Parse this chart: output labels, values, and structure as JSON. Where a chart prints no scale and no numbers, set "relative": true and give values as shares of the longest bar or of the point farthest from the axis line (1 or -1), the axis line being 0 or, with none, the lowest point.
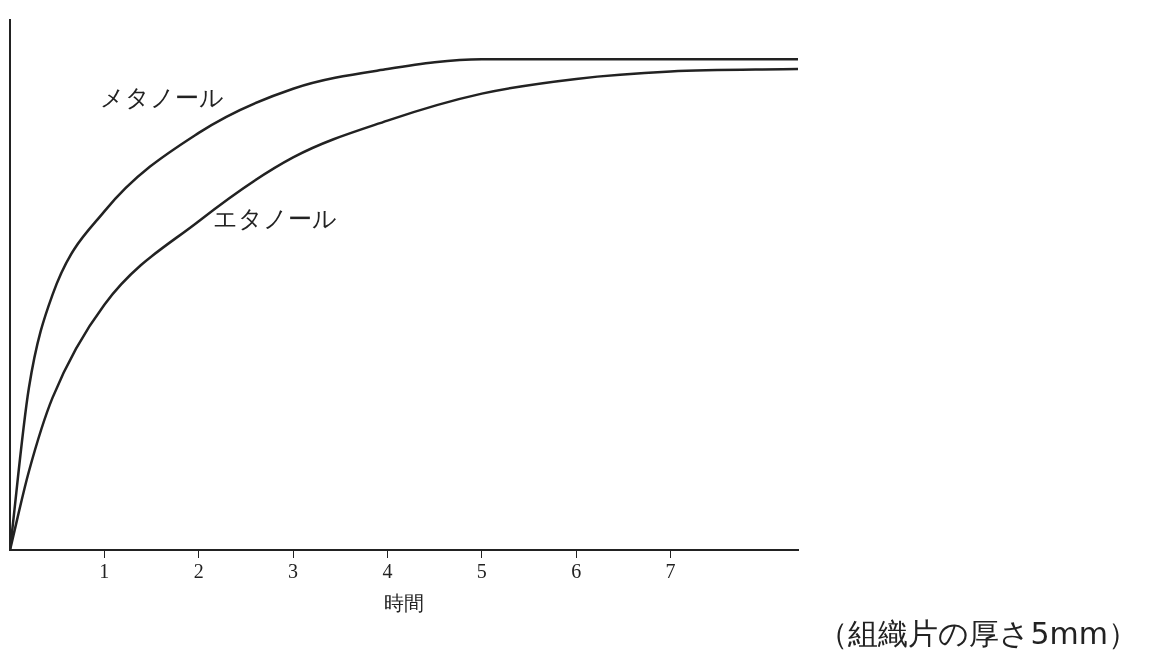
{
  "chart_data": {
    "type": "line",
    "relative": true,
    "xlabel": "時間",
    "xlim": [
      0,
      8.35
    ],
    "xticks": [
      1,
      2,
      3,
      4,
      5,
      6,
      7
    ],
    "tick_labels": "x",
    "grid": false,
    "legend": false,
    "marker": "none",
    "line_style": "solid",
    "annotations": [
      "（組織片の厚さ5mm）"
    ],
    "series": [
      {
        "name": "メタノール",
        "color": "#222222",
        "x": [
          0,
          0.2,
          0.45,
          1,
          2,
          3,
          4,
          5,
          6,
          7,
          8.35
        ],
        "values": [
          0,
          0.33,
          0.52,
          0.69,
          0.85,
          0.94,
          0.98,
          1,
          1,
          1,
          1
        ]
      },
      {
        "name": "エタノール",
        "color": "#222222",
        "x": [
          0,
          0.2,
          0.45,
          1,
          2,
          3,
          4,
          5,
          6,
          7,
          8.35
        ],
        "values": [
          0,
          0.16,
          0.31,
          0.5,
          0.67,
          0.8,
          0.875,
          0.93,
          0.96,
          0.975,
          0.98
        ]
      }
    ]
  }
}
